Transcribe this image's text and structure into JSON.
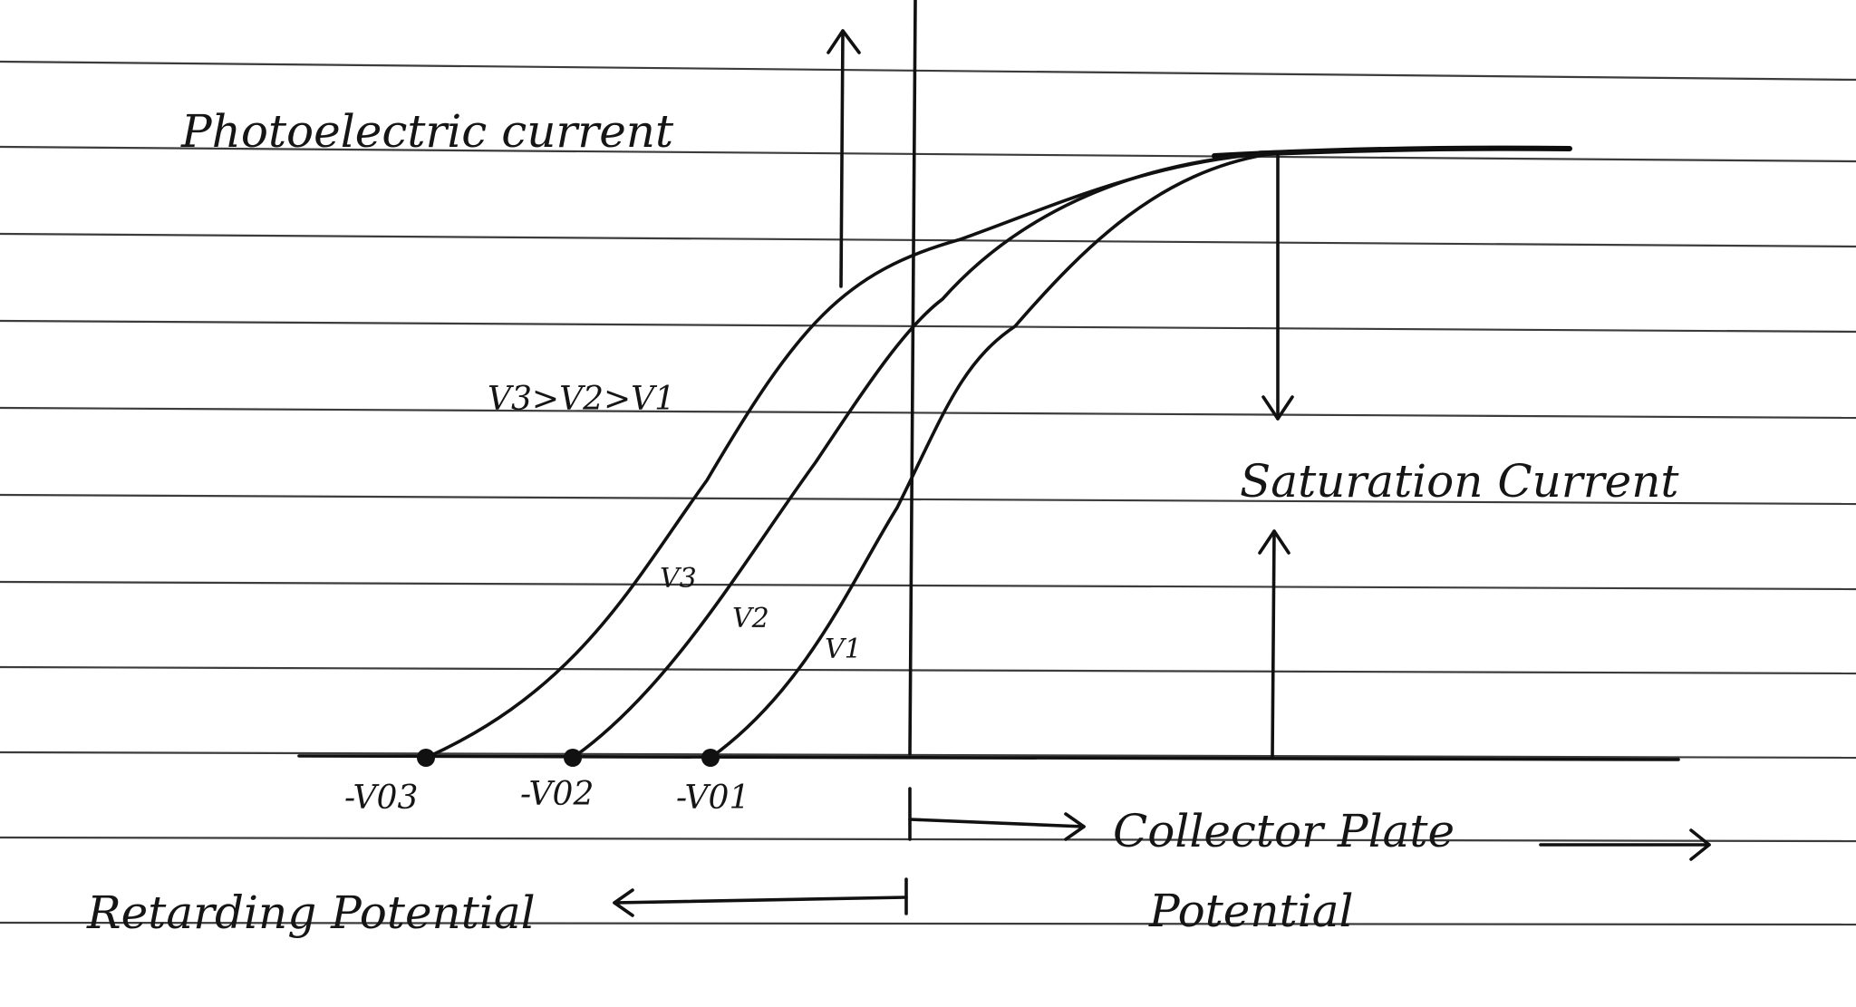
{
  "labels": {
    "y_axis": "Photoelectric current",
    "relation": "V3>V2>V1",
    "saturation": "Saturation Current",
    "collector_line1": "Collector Plate",
    "collector_line2": "Potential",
    "retarding": "Retarding Potential"
  },
  "curves": [
    {
      "id": "v3",
      "label": "V3",
      "intercept_label": "-V03"
    },
    {
      "id": "v2",
      "label": "V2",
      "intercept_label": "-V02"
    },
    {
      "id": "v1",
      "label": "V1",
      "intercept_label": "-V01"
    }
  ],
  "colors": {
    "ink": "#111111",
    "paper": "#ffffff",
    "rule": "#3c3c3c"
  }
}
